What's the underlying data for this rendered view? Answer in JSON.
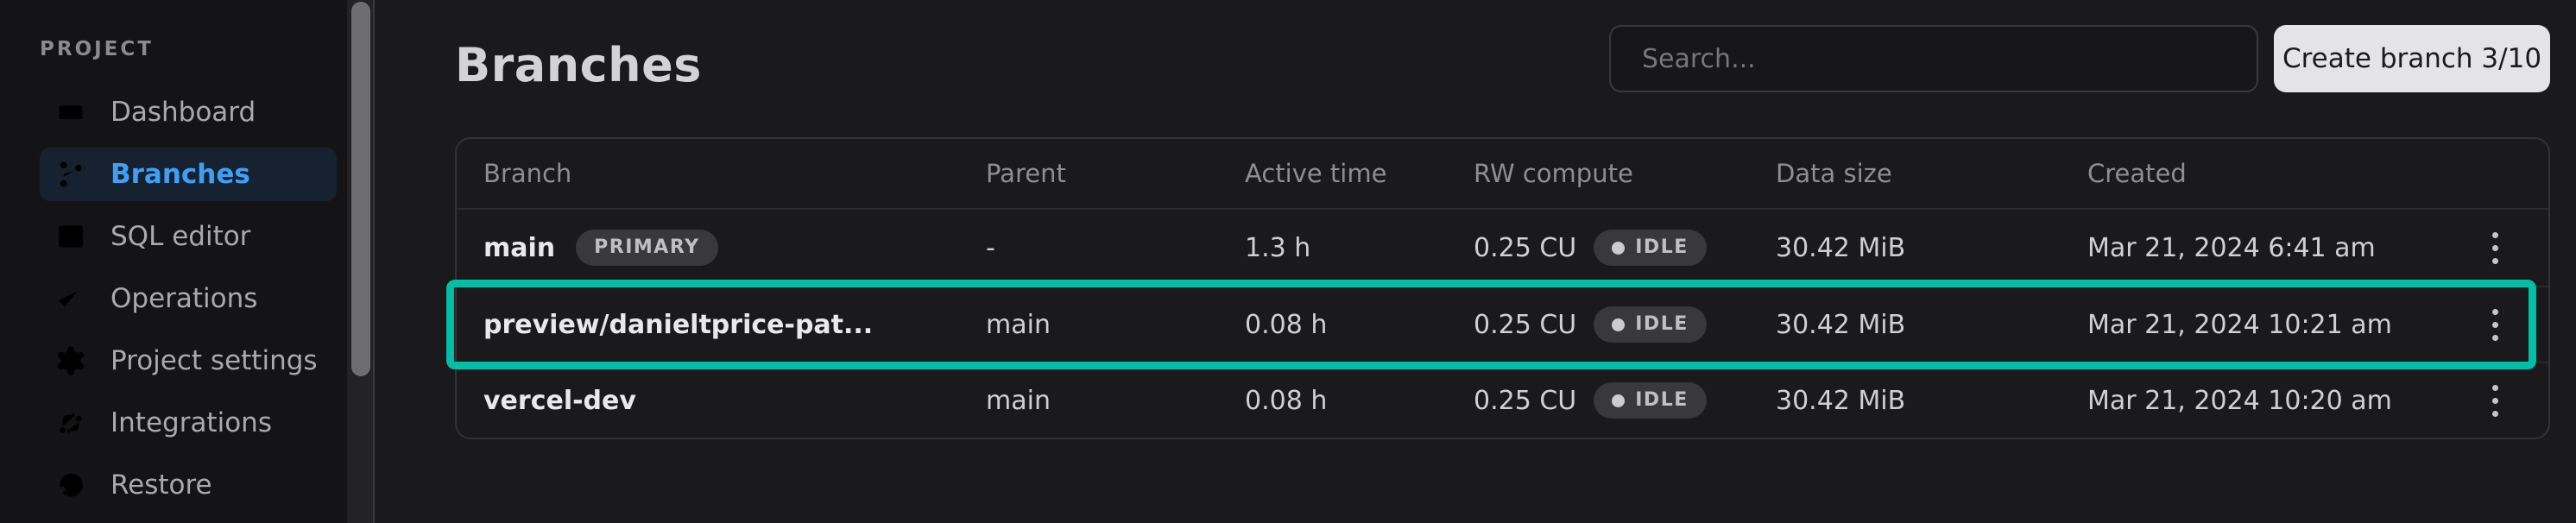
{
  "sidebar": {
    "section_label": "PROJECT",
    "items": [
      {
        "label": "Dashboard",
        "icon": "dashboard",
        "active": false
      },
      {
        "label": "Branches",
        "icon": "git-branch",
        "active": true
      },
      {
        "label": "SQL editor",
        "icon": "terminal",
        "active": false
      },
      {
        "label": "Operations",
        "icon": "checklist",
        "active": false
      },
      {
        "label": "Project settings",
        "icon": "gear",
        "active": false
      },
      {
        "label": "Integrations",
        "icon": "integrations",
        "active": false
      },
      {
        "label": "Restore",
        "icon": "history",
        "active": false
      }
    ]
  },
  "header": {
    "title": "Branches",
    "search_placeholder": "Search...",
    "create_button_label": "Create branch 3/10"
  },
  "table": {
    "columns": [
      "Branch",
      "Parent",
      "Active time",
      "RW compute",
      "Data size",
      "Created"
    ],
    "rows": [
      {
        "branch": "main",
        "badge": "PRIMARY",
        "parent": "-",
        "active_time": "1.3 h",
        "rw_compute": "0.25 CU",
        "compute_status": "IDLE",
        "data_size": "30.42 MiB",
        "created": "Mar 21, 2024 6:41 am",
        "highlighted": false
      },
      {
        "branch": "preview/danieltprice-pat...",
        "badge": "",
        "parent": "main",
        "active_time": "0.08 h",
        "rw_compute": "0.25 CU",
        "compute_status": "IDLE",
        "data_size": "30.42 MiB",
        "created": "Mar 21, 2024 10:21 am",
        "highlighted": true
      },
      {
        "branch": "vercel-dev",
        "badge": "",
        "parent": "main",
        "active_time": "0.08 h",
        "rw_compute": "0.25 CU",
        "compute_status": "IDLE",
        "data_size": "30.42 MiB",
        "created": "Mar 21, 2024 10:20 am",
        "highlighted": false
      }
    ]
  },
  "colors": {
    "accent_blue": "#3f9ff7",
    "highlight_teal": "#00bfa4",
    "background": "#1a1a1c",
    "sidebar_background": "#141416",
    "button_background": "#e4e4e6"
  }
}
